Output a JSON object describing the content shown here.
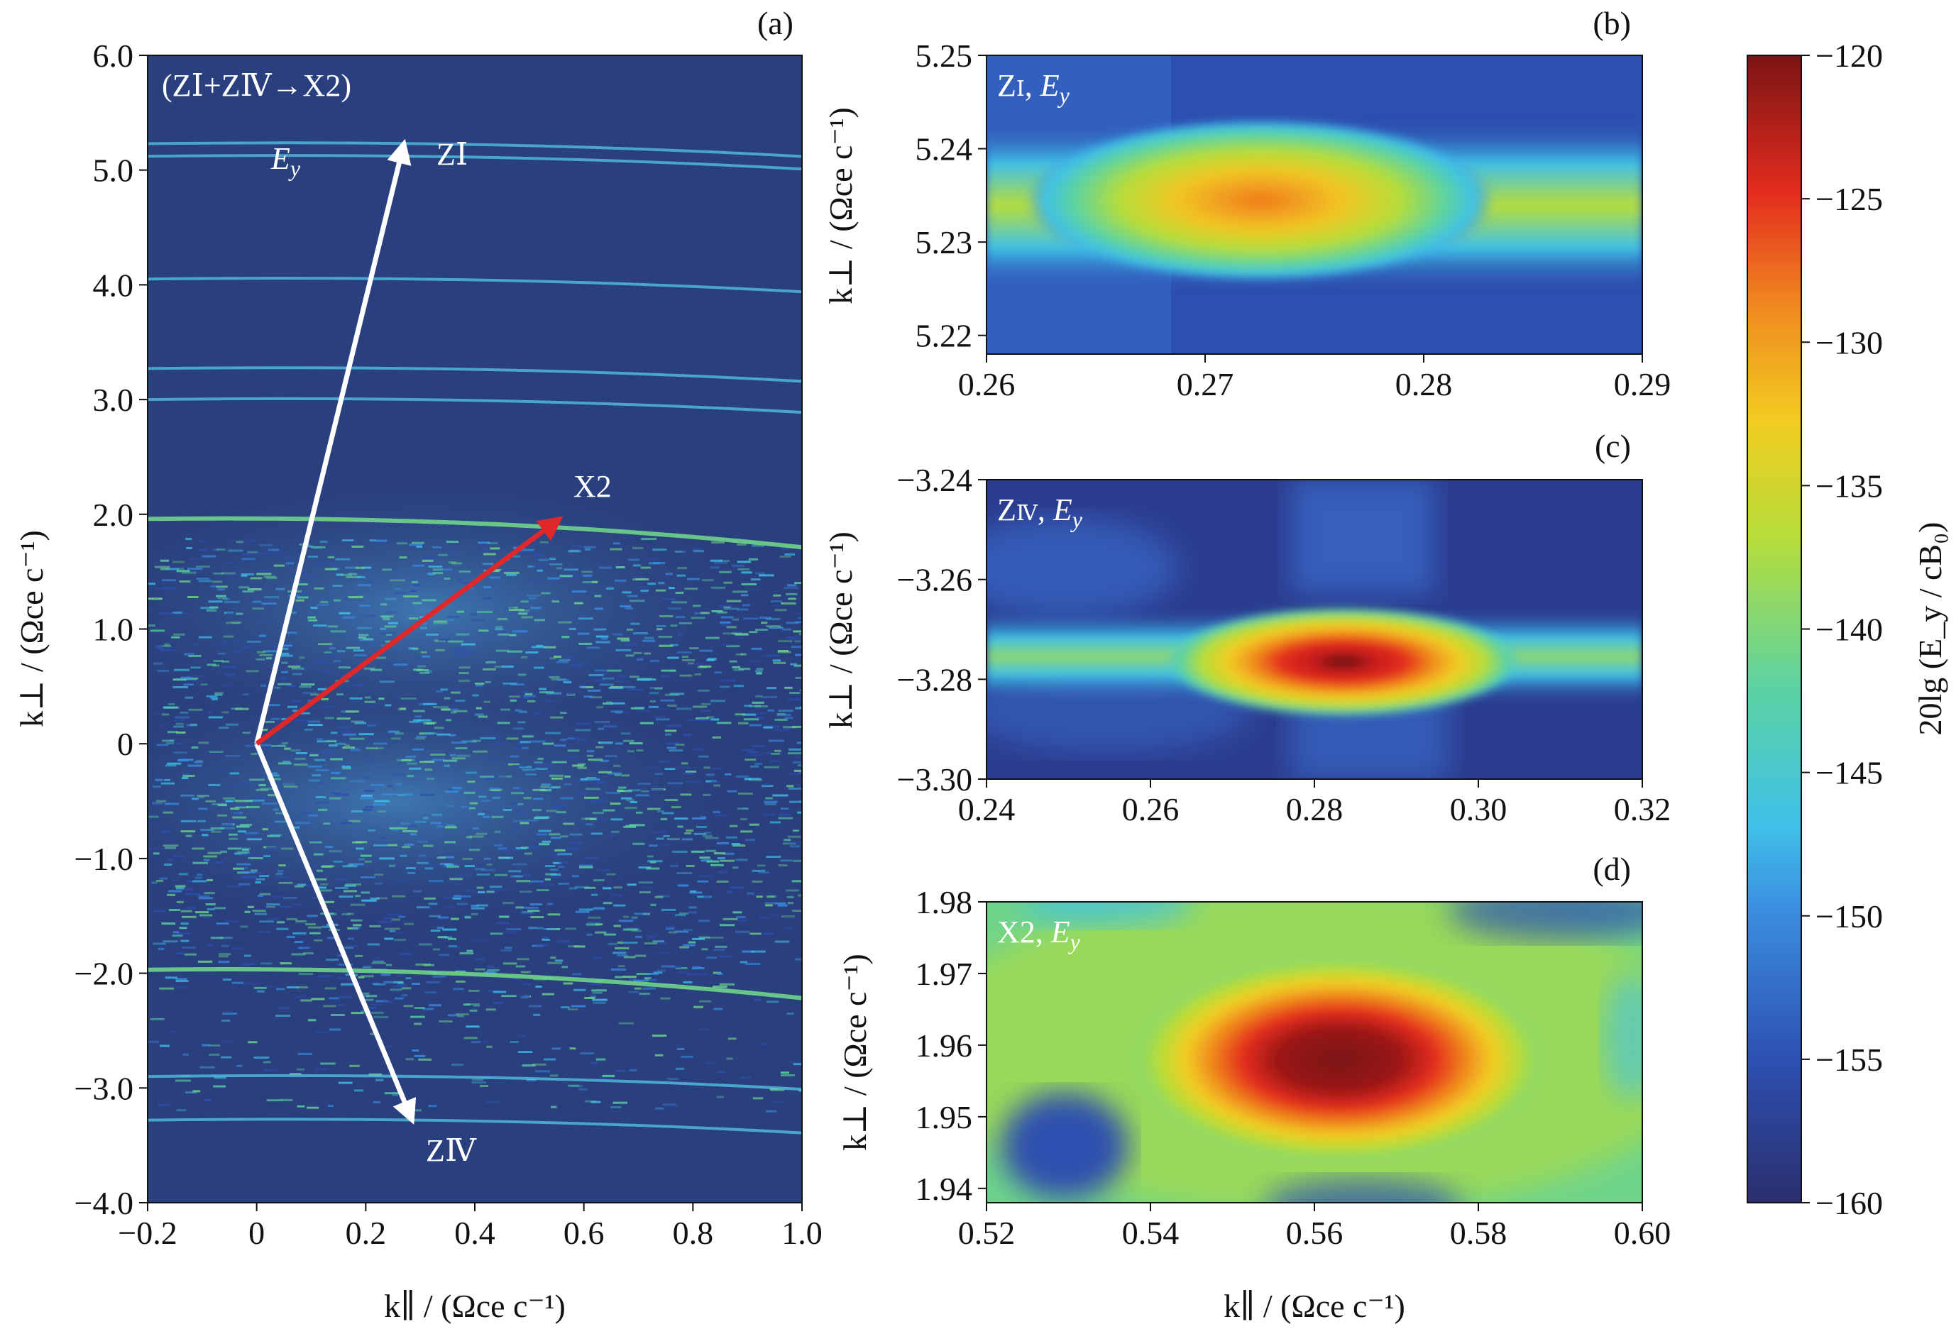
{
  "colors": {
    "background": "#2a3f7e",
    "arrow_main": "#ffffff",
    "arrow_product": "#e0282a",
    "colormap": [
      "#2b2f6d",
      "#2d4faf",
      "#3a8be0",
      "#3fc1e8",
      "#5cd3a2",
      "#b6dd3a",
      "#f2cc21",
      "#f08a1f",
      "#e32d1e",
      "#7b1414"
    ]
  },
  "chart_data": [
    {
      "panel": "(a)",
      "type": "heatmap",
      "title": "(ZⅠ+ZⅣ→X2)",
      "field_label": "E_y",
      "xlabel": "k∥ / (Ωce c⁻¹)",
      "ylabel": "k⊥ / (Ωce c⁻¹)",
      "xlim": [
        -0.2,
        1.0
      ],
      "ylim": [
        -4.0,
        6.0
      ],
      "xticks": [
        "−0.2",
        "0",
        "0.2",
        "0.4",
        "0.6",
        "0.8",
        "1.0"
      ],
      "yticks": [
        "−4.0",
        "−3.0",
        "−2.0",
        "−1.0",
        "0",
        "1.0",
        "2.0",
        "3.0",
        "4.0",
        "5.0",
        "6.0"
      ],
      "arrows": [
        {
          "label": "ZⅠ",
          "from": [
            0,
            0
          ],
          "to": [
            0.27,
            5.23
          ],
          "color": "white"
        },
        {
          "label": "ZⅣ",
          "from": [
            0,
            0
          ],
          "to": [
            0.285,
            -3.28
          ],
          "color": "white"
        },
        {
          "label": "X2",
          "from": [
            0,
            0
          ],
          "to": [
            0.555,
            1.958
          ],
          "color": "red"
        }
      ],
      "bright_lines_ky": [
        5.23,
        5.12,
        4.05,
        3.27,
        3.0,
        1.96,
        -1.97,
        -2.9,
        -3.28
      ]
    },
    {
      "panel": "(b)",
      "type": "heatmap",
      "label": "ZⅠ, E_y",
      "xlim": [
        0.26,
        0.29
      ],
      "ylim": [
        5.218,
        5.25
      ],
      "xticks": [
        "0.26",
        "0.27",
        "0.28",
        "0.29"
      ],
      "yticks": [
        "5.22",
        "5.23",
        "5.24",
        "5.25"
      ],
      "ylabel": "k⊥ / (Ωce c⁻¹)",
      "peak": {
        "x": 0.2725,
        "y": 5.2345,
        "value": -130
      }
    },
    {
      "panel": "(c)",
      "type": "heatmap",
      "label": "ZⅣ, E_y",
      "xlim": [
        0.24,
        0.32
      ],
      "ylim": [
        -3.3,
        -3.24
      ],
      "xticks": [
        "0.24",
        "0.26",
        "0.28",
        "0.30",
        "0.32"
      ],
      "yticks": [
        "−3.30",
        "−3.28",
        "−3.26",
        "−3.24"
      ],
      "ylabel": "k⊥ / (Ωce c⁻¹)",
      "peak": {
        "x": 0.2835,
        "y": -3.2765,
        "value": -120
      }
    },
    {
      "panel": "(d)",
      "type": "heatmap",
      "label": "X2, E_y",
      "xlim": [
        0.52,
        0.6
      ],
      "ylim": [
        1.938,
        1.98
      ],
      "xticks": [
        "0.52",
        "0.54",
        "0.56",
        "0.58",
        "0.60"
      ],
      "yticks": [
        "1.94",
        "1.95",
        "1.96",
        "1.97",
        "1.98"
      ],
      "xlabel": "k∥ / (Ωce c⁻¹)",
      "ylabel": "k⊥ / (Ωce c⁻¹)",
      "peak": {
        "x": 0.563,
        "y": 1.958,
        "value": -120
      }
    },
    {
      "panel": "colorbar",
      "type": "colorbar",
      "label": "20lg (E_y / cB₀)",
      "range": [
        -160,
        -120
      ],
      "ticks": [
        "−160",
        "−155",
        "−150",
        "−145",
        "−140",
        "−135",
        "−130",
        "−125",
        "−120"
      ]
    }
  ]
}
